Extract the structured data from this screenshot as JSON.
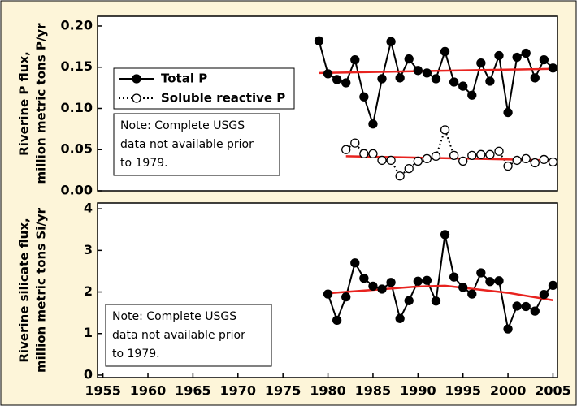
{
  "chart_data": [
    {
      "type": "line",
      "ylabel": [
        "Riverine P flux,",
        "million metric tons P/yr"
      ],
      "xlim": [
        1954.4,
        2005.5
      ],
      "ylim": [
        0,
        0.2118
      ],
      "yticks": [
        {
          "value": 0,
          "label": "0.00"
        },
        0.05,
        {
          "value": 0.1,
          "label": "0.10"
        },
        0.15,
        {
          "value": 0.2,
          "label": "0.20"
        }
      ],
      "legend": "center left",
      "annotation": [
        "Note: Complete USGS",
        "data not available prior",
        "to 1979."
      ],
      "series": [
        {
          "name": "Total P",
          "color": "#000000",
          "marker": "filled",
          "linestyle": "solid",
          "x": [
            1979,
            1980,
            1981,
            1982,
            1983,
            1984,
            1985,
            1986,
            1987,
            1988,
            1989,
            1990,
            1991,
            1992,
            1993,
            1994,
            1995,
            1996,
            1997,
            1998,
            1999,
            2000,
            2001,
            2002,
            2003,
            2004,
            2005
          ],
          "values": [
            0.182,
            0.142,
            0.135,
            0.131,
            0.159,
            0.114,
            0.081,
            0.136,
            0.181,
            0.137,
            0.16,
            0.146,
            0.143,
            0.136,
            0.169,
            0.132,
            0.127,
            0.116,
            0.155,
            0.133,
            0.164,
            0.095,
            0.162,
            0.167,
            0.137,
            0.159,
            0.149
          ],
          "trend": {
            "color": "#e8231f",
            "x": [
              1979,
              2005
            ],
            "values": [
              0.143,
              0.148
            ]
          }
        },
        {
          "name": "Soluble reactive P",
          "color": "#000000",
          "marker": "open",
          "linestyle": "dotted",
          "x": [
            1982,
            1983,
            1984,
            1985,
            1986,
            1987,
            1988,
            1989,
            1990,
            1991,
            1992,
            1993,
            1994,
            1995,
            1996,
            1997,
            1998,
            1999,
            2000,
            2001,
            2002,
            2003,
            2004,
            2005
          ],
          "values": [
            0.05,
            0.058,
            0.045,
            0.045,
            0.037,
            0.037,
            0.018,
            0.027,
            0.036,
            0.039,
            0.042,
            0.074,
            0.043,
            0.036,
            0.043,
            0.044,
            0.044,
            0.048,
            0.03,
            0.037,
            0.039,
            0.034,
            0.038,
            0.035
          ],
          "trend": {
            "color": "#e8231f",
            "x": [
              1982,
              2005
            ],
            "values": [
              0.042,
              0.037
            ]
          }
        }
      ]
    },
    {
      "type": "line",
      "ylabel": [
        "Riverine silicate flux,",
        "million metric tons Si/yr"
      ],
      "xlim": [
        1954.4,
        2005.5
      ],
      "ylim": [
        -0.06,
        4.14
      ],
      "yticks": [
        0,
        1,
        2,
        3,
        4
      ],
      "xticks": [
        1955,
        1960,
        1965,
        1970,
        1975,
        1980,
        1985,
        1990,
        1995,
        2000,
        2005
      ],
      "annotation": [
        "Note: Complete USGS",
        "data not available prior",
        "to 1979."
      ],
      "series": [
        {
          "color": "#000000",
          "marker": "filled",
          "linestyle": "solid",
          "x": [
            1980,
            1981,
            1982,
            1983,
            1984,
            1985,
            1986,
            1987,
            1988,
            1989,
            1990,
            1991,
            1992,
            1993,
            1994,
            1995,
            1996,
            1997,
            1998,
            1999,
            2000,
            2001,
            2002,
            2003,
            2004,
            2005
          ],
          "values": [
            1.95,
            1.32,
            1.88,
            2.7,
            2.33,
            2.14,
            2.07,
            2.23,
            1.36,
            1.79,
            2.26,
            2.28,
            1.78,
            3.38,
            2.36,
            2.11,
            1.95,
            2.46,
            2.25,
            2.27,
            1.11,
            1.66,
            1.65,
            1.54,
            1.94,
            2.16
          ],
          "trend": {
            "color": "#e8231f",
            "x": [
              1980,
              1985,
              1990,
              1993,
              1995,
              2000,
              2005
            ],
            "values": [
              1.97,
              2.05,
              2.13,
              2.15,
              2.1,
              1.98,
              1.8
            ]
          }
        }
      ]
    }
  ]
}
